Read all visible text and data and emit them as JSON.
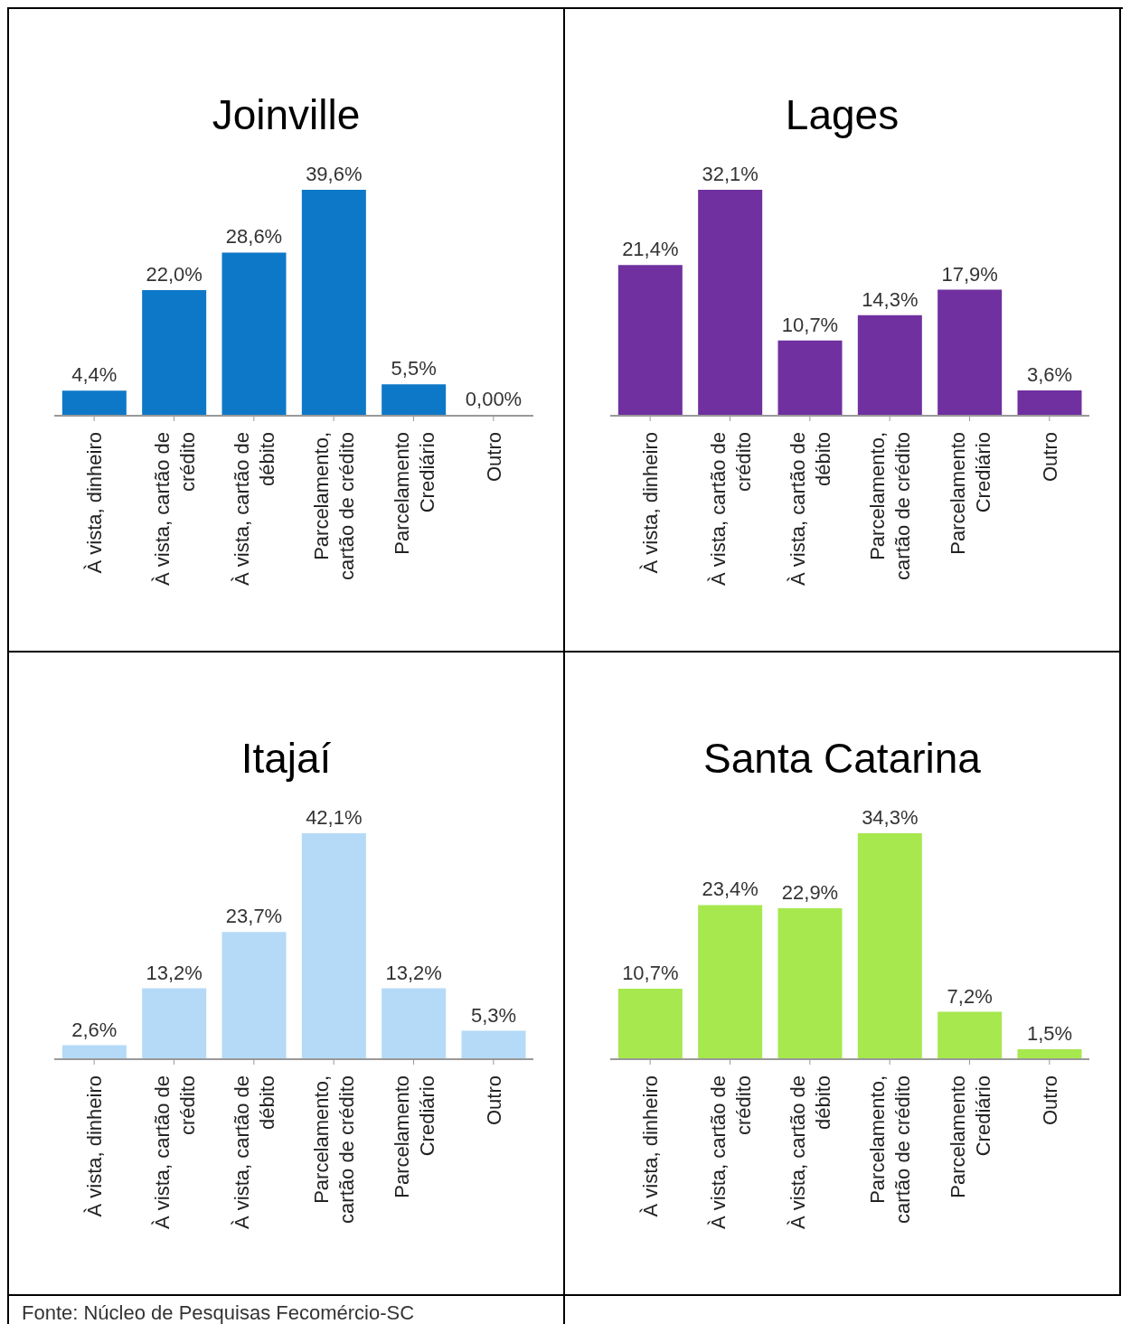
{
  "chart_data": [
    {
      "type": "bar",
      "title": "Joinville",
      "categories": [
        "À vista, dinheiro",
        "À vista, cartão de crédito",
        "À vista, cartão de débito",
        "Parcelamento, cartão de crédito",
        "Parcelamento Crediário",
        "Outro"
      ],
      "values": [
        4.4,
        22.0,
        28.6,
        39.6,
        5.5,
        0.0
      ],
      "value_labels": [
        "4,4%",
        "22,0%",
        "28,6%",
        "39,6%",
        "5,5%",
        "0,00%"
      ],
      "color": "#0e78c8",
      "annotations": [
        "Fonte: Núcleo de Pesquisas Fecomércio-SC"
      ]
    },
    {
      "type": "bar",
      "title": "Lages",
      "categories": [
        "À vista, dinheiro",
        "À vista, cartão de crédito",
        "À vista, cartão de débito",
        "Parcelamento, cartão de crédito",
        "Parcelamento Crediário",
        "Outro"
      ],
      "values": [
        21.4,
        32.1,
        10.7,
        14.3,
        17.9,
        3.6
      ],
      "value_labels": [
        "21,4%",
        "32,1%",
        "10,7%",
        "14,3%",
        "17,9%",
        "3,6%"
      ],
      "color": "#7030a0"
    },
    {
      "type": "bar",
      "title": "Itajaí",
      "categories": [
        "À vista, dinheiro",
        "À vista, cartão de crédito",
        "À vista, cartão de débito",
        "Parcelamento, cartão de crédito",
        "Parcelamento Crediário",
        "Outro"
      ],
      "values": [
        2.6,
        13.2,
        23.7,
        42.1,
        13.2,
        5.3
      ],
      "value_labels": [
        "2,6%",
        "13,2%",
        "23,7%",
        "42,1%",
        "13,2%",
        "5,3%"
      ],
      "color": "#b4daf7"
    },
    {
      "type": "bar",
      "title": "Santa Catarina",
      "categories": [
        "À vista, dinheiro",
        "À vista, cartão de crédito",
        "À vista, cartão de débito",
        "Parcelamento, cartão de crédito",
        "Parcelamento Crediário",
        "Outro"
      ],
      "values": [
        10.7,
        23.4,
        22.9,
        34.3,
        7.2,
        1.5
      ],
      "value_labels": [
        "10,7%",
        "23,4%",
        "22,9%",
        "34,3%",
        "7,2%",
        "1,5%"
      ],
      "color": "#a6e84e"
    }
  ]
}
